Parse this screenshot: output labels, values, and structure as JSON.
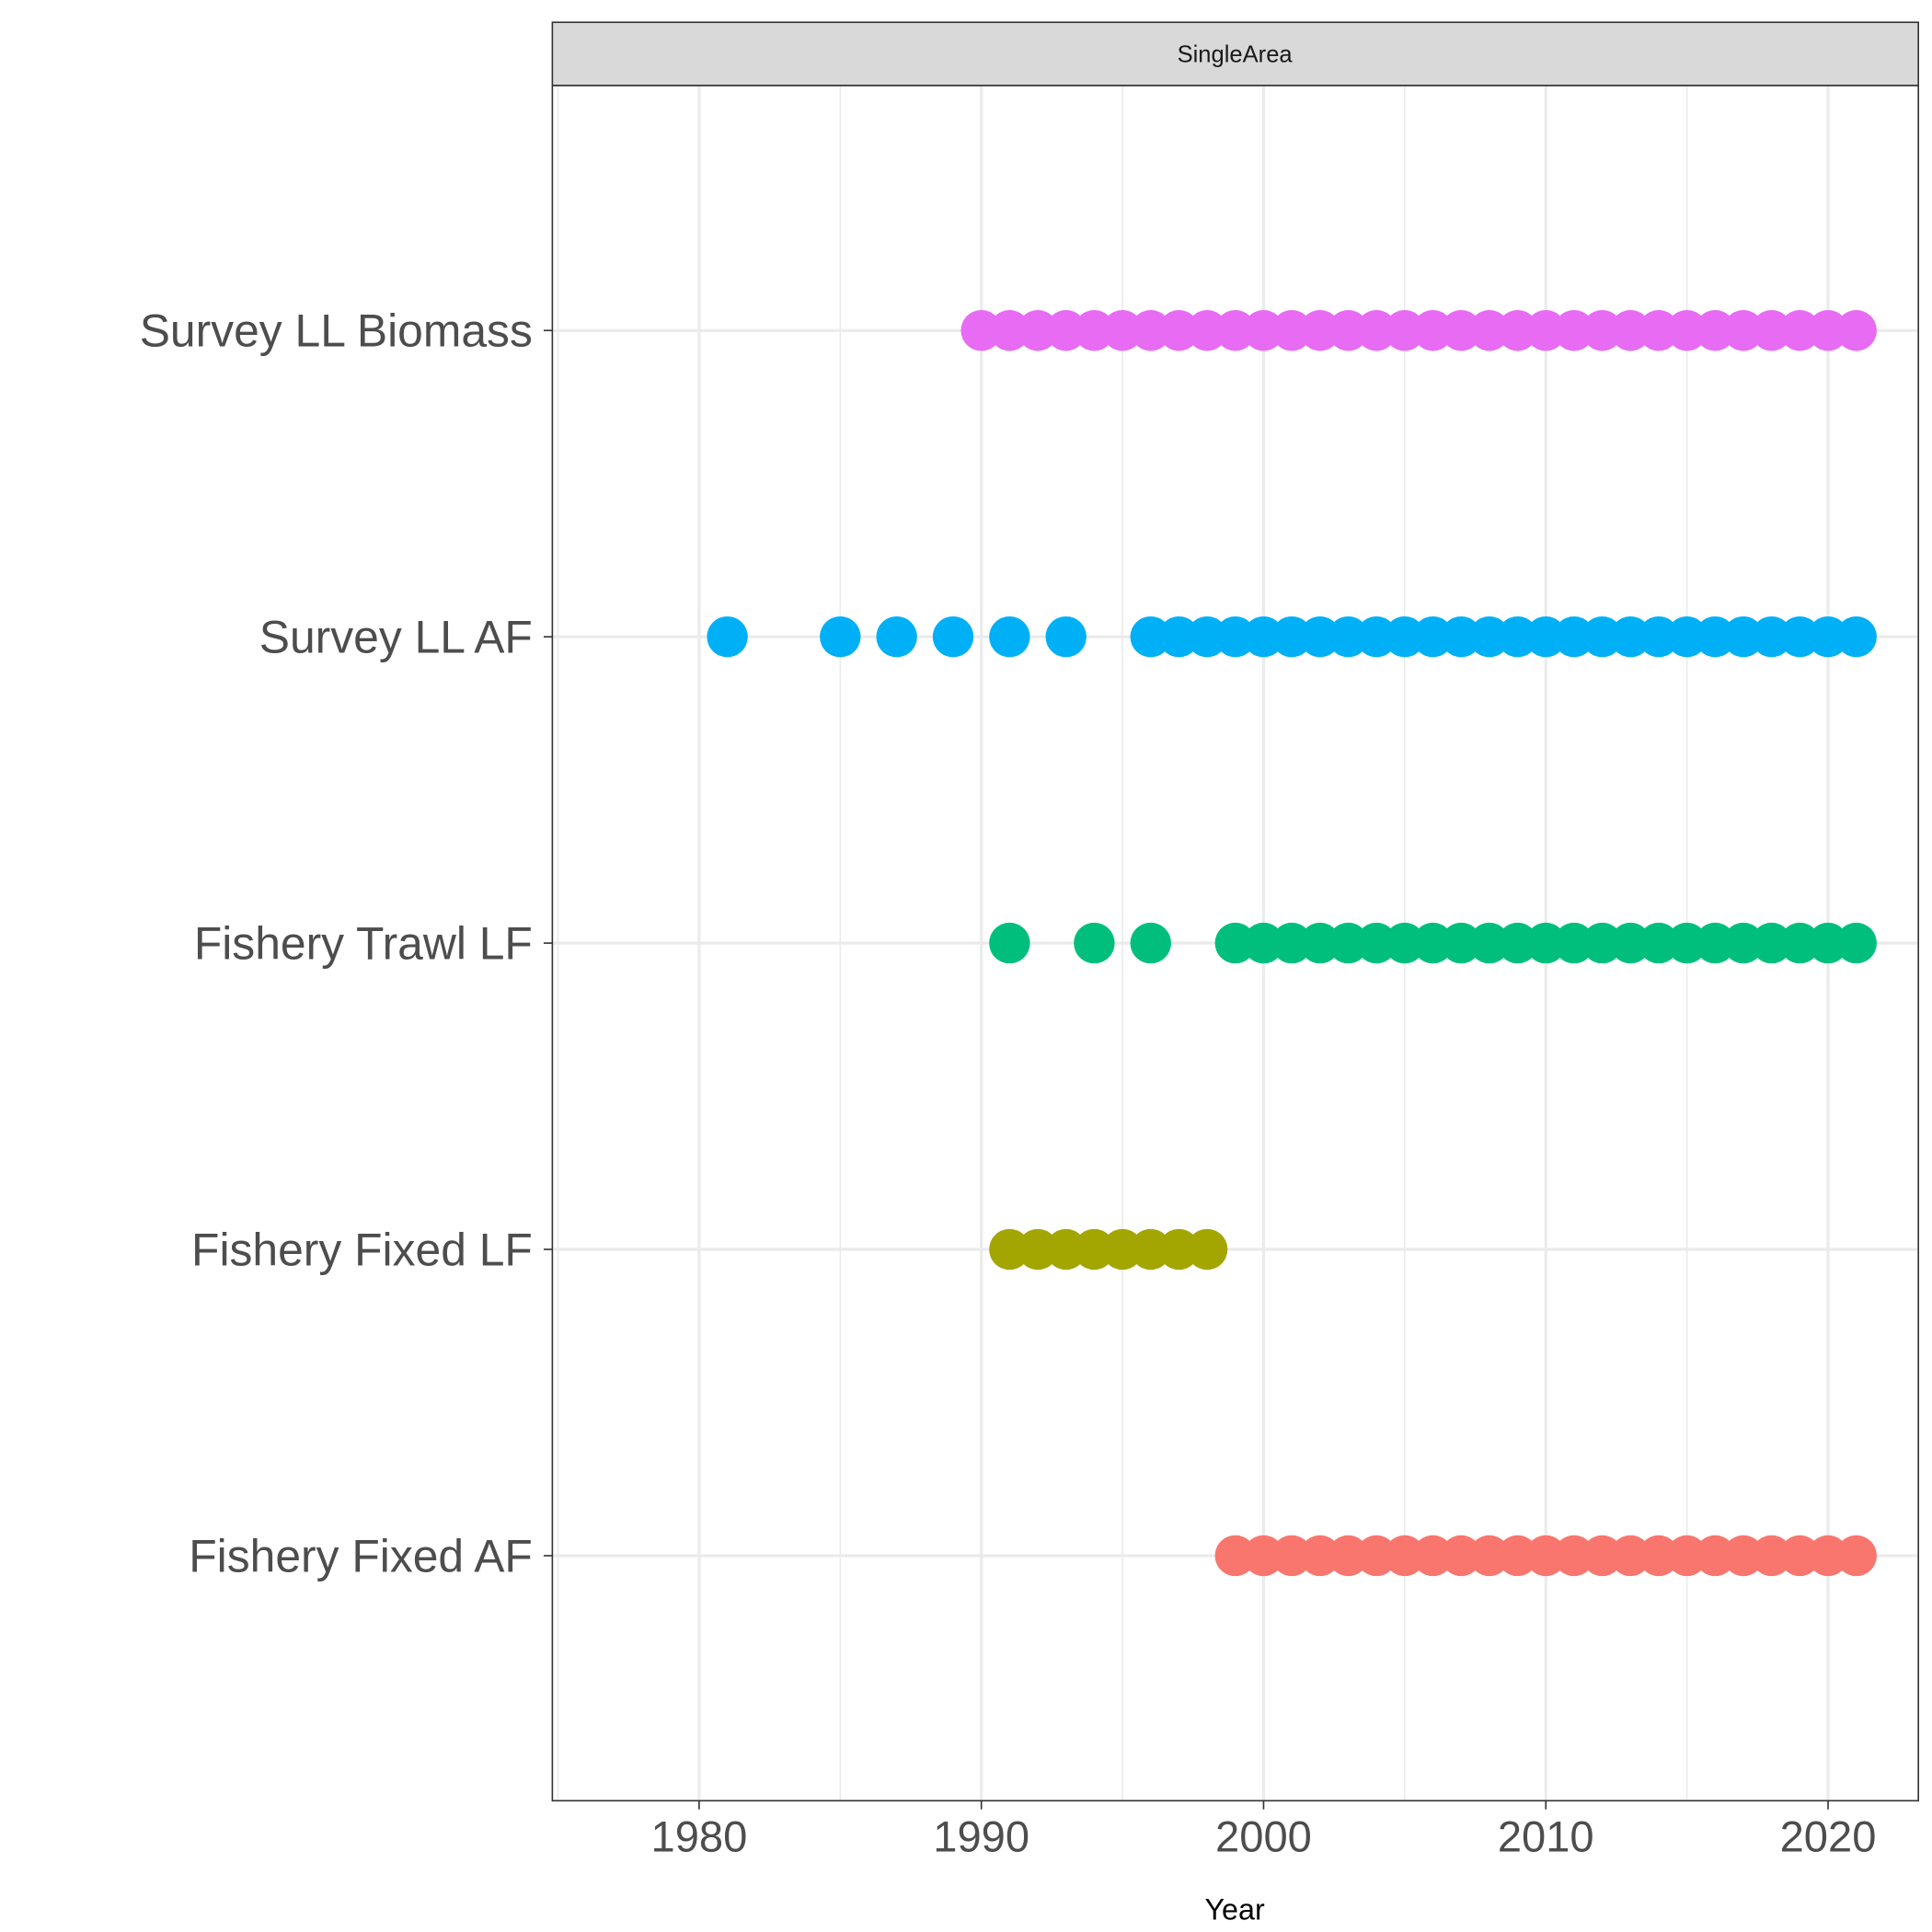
{
  "chart_data": {
    "type": "scatter",
    "facet_label": "SingleArea",
    "xlabel": "Year",
    "ylabel": "",
    "xlim": [
      1974.8,
      2023.2
    ],
    "x_ticks": [
      1980,
      1990,
      2000,
      2010,
      2020
    ],
    "grid": true,
    "legend": "none",
    "categories": [
      "Fishery Fixed AF",
      "Fishery Fixed LF",
      "Fishery Trawl LF",
      "Survey LL AF",
      "Survey LL Biomass"
    ],
    "series": [
      {
        "name": "Fishery Fixed AF",
        "color": "#F8766D",
        "years": [
          1999,
          2000,
          2001,
          2002,
          2003,
          2004,
          2005,
          2006,
          2007,
          2008,
          2009,
          2010,
          2011,
          2012,
          2013,
          2014,
          2015,
          2016,
          2017,
          2018,
          2019,
          2020,
          2021
        ]
      },
      {
        "name": "Fishery Fixed LF",
        "color": "#A3A500",
        "years": [
          1991,
          1992,
          1993,
          1994,
          1995,
          1996,
          1997,
          1998
        ]
      },
      {
        "name": "Fishery Trawl LF",
        "color": "#00BF7D",
        "years": [
          1991,
          1994,
          1996,
          1999,
          2000,
          2001,
          2002,
          2003,
          2004,
          2005,
          2006,
          2007,
          2008,
          2009,
          2010,
          2011,
          2012,
          2013,
          2014,
          2015,
          2016,
          2017,
          2018,
          2019,
          2020,
          2021
        ]
      },
      {
        "name": "Survey LL AF",
        "color": "#00B0F6",
        "years": [
          1981,
          1985,
          1987,
          1989,
          1991,
          1993,
          1996,
          1997,
          1998,
          1999,
          2000,
          2001,
          2002,
          2003,
          2004,
          2005,
          2006,
          2007,
          2008,
          2009,
          2010,
          2011,
          2012,
          2013,
          2014,
          2015,
          2016,
          2017,
          2018,
          2019,
          2020,
          2021
        ]
      },
      {
        "name": "Survey LL Biomass",
        "color": "#E76BF3",
        "years": [
          1990,
          1991,
          1992,
          1993,
          1994,
          1995,
          1996,
          1997,
          1998,
          1999,
          2000,
          2001,
          2002,
          2003,
          2004,
          2005,
          2006,
          2007,
          2008,
          2009,
          2010,
          2011,
          2012,
          2013,
          2014,
          2015,
          2016,
          2017,
          2018,
          2019,
          2020,
          2021
        ]
      }
    ]
  }
}
